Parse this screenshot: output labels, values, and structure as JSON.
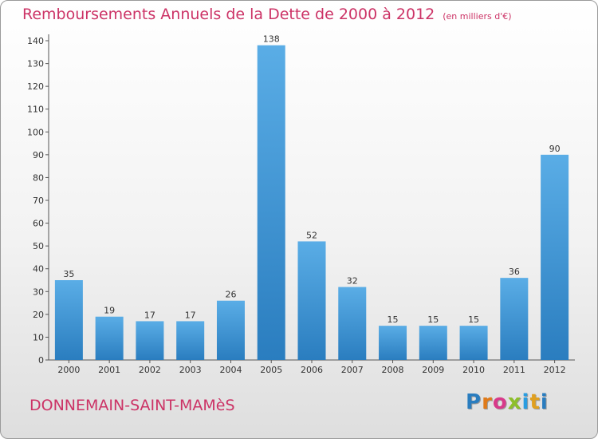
{
  "chart_data": {
    "type": "bar",
    "title": "Remboursements Annuels de la Dette de 2000 à 2012",
    "unit_label": "(en milliers d'€)",
    "categories": [
      "2000",
      "2001",
      "2002",
      "2003",
      "2004",
      "2005",
      "2006",
      "2007",
      "2008",
      "2009",
      "2010",
      "2011",
      "2012"
    ],
    "values": [
      35,
      19,
      17,
      17,
      26,
      138,
      52,
      32,
      15,
      15,
      15,
      36,
      90
    ],
    "data_labels": [
      "35",
      "19",
      "17",
      "17",
      "26",
      "138",
      "52",
      "32",
      "15",
      "15",
      "15",
      "36",
      "90"
    ],
    "yticks": [
      "0",
      "10",
      "20",
      "30",
      "40",
      "50",
      "60",
      "70",
      "80",
      "90",
      "100",
      "110",
      "120",
      "130",
      "140"
    ],
    "ylim": [
      0,
      140
    ],
    "ytick_step": 10,
    "xlabel": "",
    "ylabel": "",
    "grid": false,
    "colors": {
      "bar_top": "#5aade6",
      "bar_bottom": "#2a7dbf",
      "title": "#cc3366",
      "axis": "#555555"
    }
  },
  "footer": {
    "city": "DONNEMAIN-SAINT-MAMèS",
    "logo": [
      "P",
      "r",
      "o",
      "x",
      "i",
      "t",
      "i"
    ],
    "logo_colors": [
      "#2a7dbf",
      "#e07b1a",
      "#d83a8a",
      "#8dbf2a",
      "#2a9de0",
      "#e0a020",
      "#2a7dbf"
    ]
  }
}
